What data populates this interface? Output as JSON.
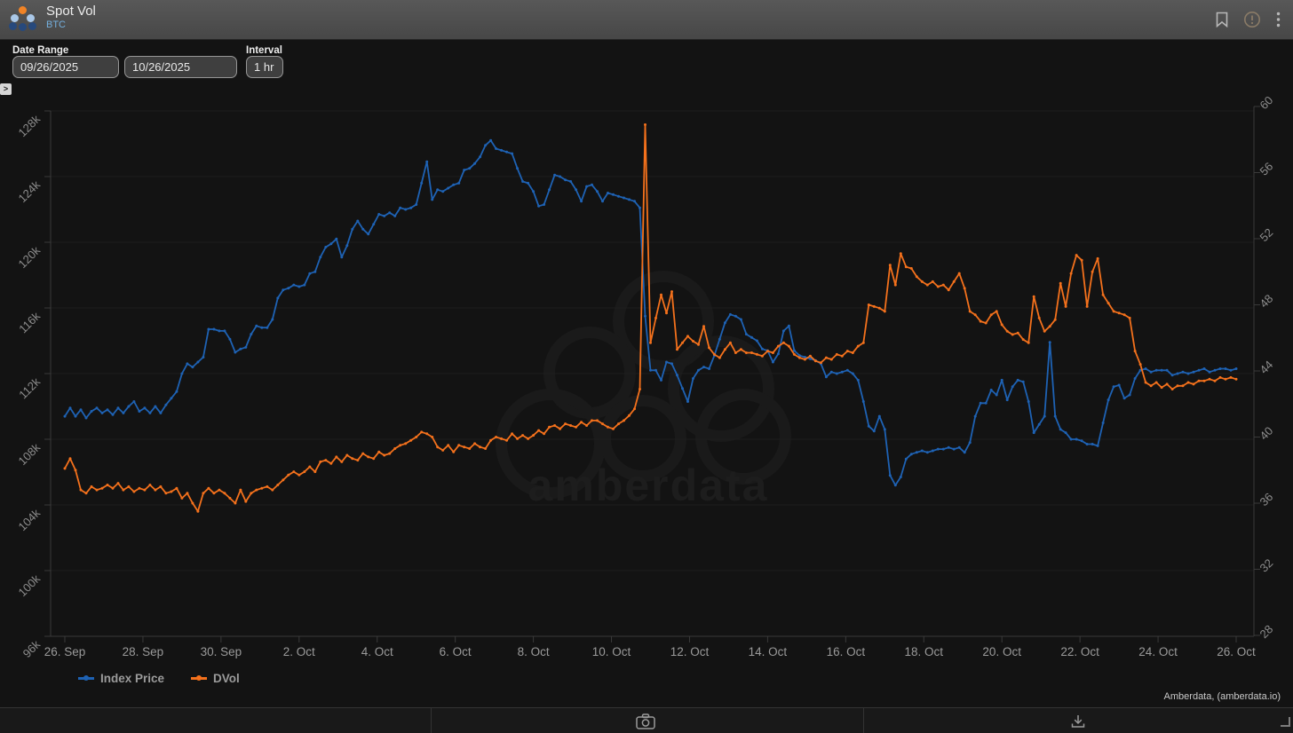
{
  "header": {
    "title": "Spot Vol",
    "subtitle": "BTC"
  },
  "controls": {
    "date_range_label": "Date Range",
    "date_from": "09/26/2025",
    "date_to": "10/26/2025",
    "interval_label": "Interval",
    "interval_value": "1 hr",
    "expander_glyph": ">"
  },
  "watermark": {
    "text": "amberdata"
  },
  "legend": [
    {
      "label": "Index Price",
      "color": "#1e62b4"
    },
    {
      "label": "DVol",
      "color": "#f4711c"
    }
  ],
  "attribution": "Amberdata, (amberdata.io)",
  "icons": [
    "bookmark-icon",
    "info-icon",
    "kebab-menu-icon",
    "camera-icon",
    "download-icon",
    "expand-panel-icon",
    "resize-handle-icon",
    "amberdata-logo"
  ],
  "colors": {
    "background": "#131313",
    "header_bg": "#4e4e4e",
    "grid": "#1d1d1d",
    "axis_line": "#3a3a3a",
    "axis_text": "#8d8d8d",
    "index_price": "#1e62b4",
    "dvol": "#f4711c",
    "btc_accent": "#74b0df"
  },
  "chart_data": {
    "type": "line",
    "title": "Spot Vol",
    "instrument": "BTC",
    "x_axis": {
      "tick_labels": [
        "26. Sep",
        "28. Sep",
        "30. Sep",
        "2. Oct",
        "4. Oct",
        "6. Oct",
        "8. Oct",
        "10. Oct",
        "12. Oct",
        "14. Oct",
        "16. Oct",
        "18. Oct",
        "20. Oct",
        "22. Oct",
        "24. Oct",
        "26. Oct"
      ],
      "start_date": "09/26/2025",
      "end_date": "10/26/2025",
      "source_interval": "1 hr",
      "plotted_step_hours": 3.3,
      "grid": false
    },
    "y_left": {
      "series": "Index Price",
      "tick_labels": [
        "128k",
        "124k",
        "120k",
        "116k",
        "112k",
        "108k",
        "104k",
        "100k",
        "96k"
      ],
      "min": 96000,
      "max": 128000
    },
    "y_right": {
      "series": "DVol",
      "tick_labels": [
        "60",
        "56",
        "52",
        "48",
        "44",
        "40",
        "36",
        "32",
        "28"
      ],
      "min": 28,
      "max": 60
    },
    "legend_position": "bottom-left",
    "series": [
      {
        "name": "Index Price",
        "axis": "left",
        "color": "#1e62b4",
        "units": "USD thousands",
        "values": [
          109.4,
          109.9,
          109.4,
          109.8,
          109.3,
          109.7,
          109.9,
          109.6,
          109.8,
          109.5,
          109.9,
          109.6,
          110.0,
          110.3,
          109.7,
          109.9,
          109.6,
          110.0,
          109.6,
          110.1,
          110.5,
          110.9,
          112.0,
          112.6,
          112.4,
          112.7,
          113.0,
          114.7,
          114.7,
          114.6,
          114.6,
          114.1,
          113.3,
          113.5,
          113.6,
          114.4,
          114.9,
          114.8,
          114.8,
          115.3,
          116.6,
          117.1,
          117.2,
          117.4,
          117.3,
          117.4,
          118.1,
          118.2,
          119.1,
          119.7,
          119.9,
          120.2,
          119.1,
          119.8,
          120.8,
          121.3,
          120.8,
          120.5,
          121.1,
          121.7,
          121.6,
          121.8,
          121.6,
          122.1,
          122.0,
          122.1,
          122.3,
          123.6,
          124.9,
          122.6,
          123.2,
          123.1,
          123.3,
          123.5,
          123.6,
          124.4,
          124.5,
          124.8,
          125.2,
          125.9,
          126.2,
          125.7,
          125.6,
          125.5,
          125.4,
          124.5,
          123.7,
          123.6,
          123.1,
          122.2,
          122.3,
          123.2,
          124.1,
          124.0,
          123.8,
          123.7,
          123.2,
          122.5,
          123.4,
          123.5,
          123.1,
          122.5,
          123.0,
          122.9,
          122.8,
          122.7,
          122.6,
          122.5,
          122.1,
          115.5,
          112.2,
          112.2,
          111.6,
          112.7,
          112.6,
          111.9,
          111.1,
          110.3,
          111.7,
          112.2,
          112.4,
          112.3,
          113.1,
          114.1,
          115.1,
          115.6,
          115.5,
          115.3,
          114.4,
          114.2,
          114.0,
          113.5,
          113.4,
          112.7,
          113.2,
          114.6,
          114.9,
          113.4,
          113.1,
          113.0,
          112.9,
          112.8,
          112.6,
          111.8,
          112.1,
          112.0,
          112.1,
          112.2,
          112.0,
          111.6,
          110.3,
          108.8,
          108.5,
          109.4,
          108.6,
          105.8,
          105.2,
          105.7,
          106.8,
          107.1,
          107.2,
          107.3,
          107.2,
          107.3,
          107.4,
          107.4,
          107.5,
          107.4,
          107.5,
          107.2,
          107.8,
          109.4,
          110.2,
          110.2,
          111.0,
          110.7,
          111.6,
          110.4,
          111.2,
          111.6,
          111.5,
          110.3,
          108.4,
          108.9,
          109.4,
          113.9,
          109.4,
          108.6,
          108.4,
          108.0,
          108.0,
          107.9,
          107.7,
          107.7,
          107.6,
          109.0,
          110.4,
          111.2,
          111.3,
          110.5,
          110.7,
          111.7,
          112.2,
          112.3,
          112.1,
          112.2,
          112.2,
          112.2,
          111.9,
          112.0,
          112.1,
          112.0,
          112.1,
          112.2,
          112.3,
          112.1,
          112.2,
          112.3,
          112.3,
          112.2,
          112.3
        ]
      },
      {
        "name": "DVol",
        "axis": "right",
        "color": "#f4711c",
        "units": "volatility points",
        "values": [
          38.1,
          38.7,
          38.0,
          36.8,
          36.6,
          37.0,
          36.8,
          36.9,
          37.1,
          36.9,
          37.2,
          36.8,
          37.0,
          36.7,
          36.9,
          36.8,
          37.1,
          36.8,
          37.0,
          36.6,
          36.7,
          36.9,
          36.3,
          36.6,
          36.0,
          35.5,
          36.6,
          36.9,
          36.6,
          36.8,
          36.6,
          36.3,
          36.0,
          36.8,
          36.1,
          36.6,
          36.8,
          36.9,
          37.0,
          36.8,
          37.1,
          37.4,
          37.7,
          37.9,
          37.7,
          37.9,
          38.2,
          37.9,
          38.5,
          38.6,
          38.4,
          38.8,
          38.5,
          38.9,
          38.7,
          38.6,
          39.0,
          38.8,
          38.7,
          39.1,
          38.9,
          39.0,
          39.3,
          39.5,
          39.6,
          39.8,
          40.0,
          40.3,
          40.2,
          40.0,
          39.4,
          39.2,
          39.5,
          39.1,
          39.5,
          39.4,
          39.3,
          39.6,
          39.4,
          39.3,
          39.8,
          40.0,
          39.9,
          39.8,
          40.2,
          39.9,
          40.1,
          39.9,
          40.1,
          40.4,
          40.2,
          40.6,
          40.7,
          40.5,
          40.8,
          40.7,
          40.6,
          40.9,
          40.7,
          41.0,
          41.0,
          40.8,
          40.6,
          40.5,
          40.8,
          41.0,
          41.3,
          41.7,
          42.9,
          58.9,
          45.7,
          47.2,
          48.6,
          47.5,
          48.8,
          45.3,
          45.7,
          46.1,
          45.8,
          45.6,
          46.7,
          45.4,
          45.0,
          44.8,
          45.3,
          45.7,
          45.1,
          45.3,
          45.1,
          45.1,
          45.0,
          44.9,
          45.2,
          45.1,
          45.5,
          45.7,
          45.5,
          45.0,
          44.8,
          44.7,
          44.9,
          44.6,
          44.5,
          44.8,
          44.7,
          45.0,
          44.9,
          45.2,
          45.1,
          45.5,
          45.7,
          48.0,
          47.9,
          47.8,
          47.6,
          50.4,
          49.2,
          51.1,
          50.3,
          50.2,
          49.7,
          49.4,
          49.2,
          49.4,
          49.1,
          49.2,
          48.9,
          49.4,
          49.9,
          49.0,
          47.6,
          47.4,
          47.0,
          46.9,
          47.4,
          47.6,
          46.8,
          46.4,
          46.2,
          46.3,
          45.9,
          45.7,
          48.5,
          47.2,
          46.4,
          46.7,
          47.1,
          49.3,
          47.9,
          49.9,
          51.0,
          50.7,
          47.9,
          50.0,
          50.8,
          48.6,
          48.1,
          47.6,
          47.5,
          47.4,
          47.2,
          45.2,
          44.4,
          43.3,
          43.1,
          43.3,
          43.0,
          43.2,
          42.9,
          43.1,
          43.1,
          43.3,
          43.2,
          43.4,
          43.4,
          43.5,
          43.4,
          43.6,
          43.5,
          43.6,
          43.5
        ]
      }
    ]
  }
}
